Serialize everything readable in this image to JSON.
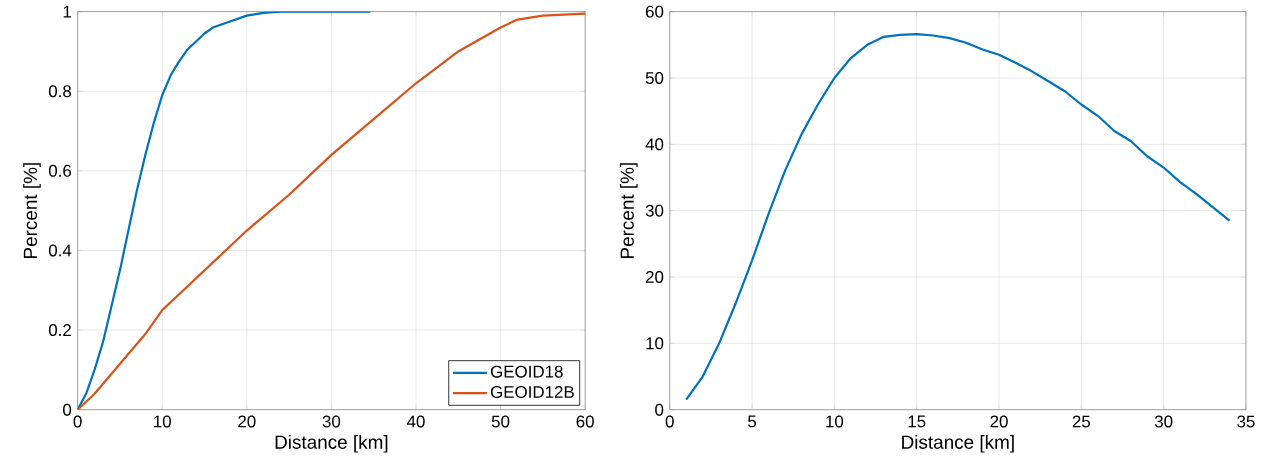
{
  "chart_data": [
    {
      "type": "line",
      "xlabel": "Distance [km]",
      "ylabel": "Percent [%]",
      "xlim": [
        0,
        60
      ],
      "ylim": [
        0,
        1
      ],
      "xticks": [
        0,
        10,
        20,
        30,
        40,
        50,
        60
      ],
      "yticks": [
        0,
        0.2,
        0.4,
        0.6,
        0.8,
        1
      ],
      "grid": true,
      "legend": "bottom right",
      "series": [
        {
          "name": "GEOID18",
          "color": "#0072bd",
          "x": [
            0,
            1,
            2,
            3,
            4,
            5,
            6,
            7,
            8,
            9,
            10,
            11,
            12,
            13,
            14,
            15,
            16,
            18,
            20,
            22,
            24,
            34.6
          ],
          "values": [
            0,
            0.04,
            0.1,
            0.17,
            0.26,
            0.35,
            0.45,
            0.55,
            0.64,
            0.72,
            0.79,
            0.84,
            0.875,
            0.905,
            0.925,
            0.945,
            0.96,
            0.975,
            0.99,
            0.997,
            1,
            1
          ]
        },
        {
          "name": "GEOID12B",
          "color": "#d95319",
          "x": [
            0,
            2,
            4,
            6,
            8,
            10,
            12,
            15,
            18,
            20,
            25,
            30,
            35,
            40,
            45,
            50,
            52,
            55,
            60
          ],
          "values": [
            0,
            0.04,
            0.09,
            0.14,
            0.19,
            0.25,
            0.29,
            0.35,
            0.41,
            0.45,
            0.54,
            0.64,
            0.73,
            0.82,
            0.9,
            0.96,
            0.98,
            0.99,
            0.995
          ]
        }
      ]
    },
    {
      "type": "line",
      "xlabel": "Distance [km]",
      "ylabel": "Percent [%]",
      "xlim": [
        0,
        35
      ],
      "ylim": [
        0,
        60
      ],
      "xticks": [
        0,
        5,
        10,
        15,
        20,
        25,
        30,
        35
      ],
      "yticks": [
        0,
        10,
        20,
        30,
        40,
        50,
        60
      ],
      "grid": true,
      "series": [
        {
          "color": "#0072bd",
          "x": [
            1,
            2,
            3,
            4,
            5,
            6,
            7,
            8,
            9,
            10,
            11,
            12,
            13,
            14,
            15,
            16,
            17,
            18,
            19,
            20,
            21,
            22,
            23,
            24,
            25,
            26,
            27,
            28,
            29,
            30,
            31,
            32,
            33,
            34
          ],
          "values": [
            1.5,
            5,
            10,
            16,
            22.5,
            29.5,
            36,
            41.5,
            46,
            50,
            53,
            55,
            56.2,
            56.5,
            56.6,
            56.4,
            56,
            55.3,
            54.3,
            53.5,
            52.3,
            51,
            49.5,
            48,
            46,
            44.3,
            42,
            40.5,
            38.2,
            36.5,
            34.3,
            32.5,
            30.5,
            28.5
          ]
        }
      ]
    }
  ]
}
